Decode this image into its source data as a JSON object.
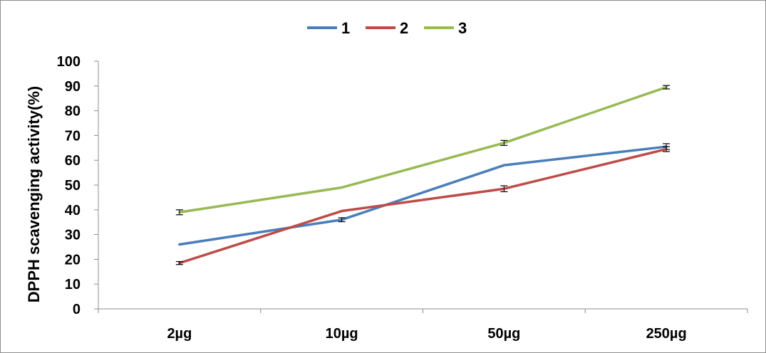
{
  "chart_data": {
    "type": "line",
    "title": "",
    "xlabel": "",
    "ylabel": "DPPH scavenging activity(%)",
    "categories": [
      "2µg",
      "10µg",
      "50µg",
      "250µg"
    ],
    "ylim": [
      0,
      100
    ],
    "yticks": [
      "0",
      "10",
      "20",
      "30",
      "40",
      "50",
      "60",
      "70",
      "80",
      "90",
      "100"
    ],
    "grid": false,
    "legend_position": "top-center",
    "series": [
      {
        "name": "1",
        "color": "#4a7ebb",
        "values": [
          26,
          36,
          58,
          65.5
        ],
        "errors": [
          0,
          0.8,
          0,
          1.2
        ]
      },
      {
        "name": "2",
        "color": "#be4b48",
        "values": [
          18.5,
          39.5,
          48.5,
          64.5
        ],
        "errors": [
          0.6,
          0,
          1.2,
          1.0
        ]
      },
      {
        "name": "3",
        "color": "#98b954",
        "values": [
          39,
          49,
          67,
          89.5
        ],
        "errors": [
          1.0,
          0,
          1.0,
          0.7
        ]
      }
    ]
  }
}
